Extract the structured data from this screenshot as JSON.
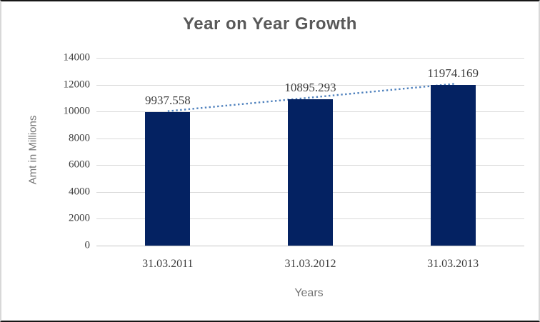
{
  "chart_data": {
    "type": "bar",
    "title": "Year on Year Growth",
    "xlabel": "Years",
    "ylabel": "Amt in Millions",
    "categories": [
      "31.03.2011",
      "31.03.2012",
      "31.03.2013"
    ],
    "values": [
      9937.558,
      10895.293,
      11974.169
    ],
    "data_labels": [
      "9937.558",
      "10895.293",
      "11974.169"
    ],
    "yticks": [
      0,
      2000,
      4000,
      6000,
      8000,
      10000,
      12000,
      14000
    ],
    "ylim": [
      0,
      14000
    ],
    "grid": true,
    "legend": "none",
    "trendline": {
      "type": "linear",
      "style": "dotted"
    }
  },
  "colors": {
    "bar": "#042262",
    "trendline": "#4f81bd",
    "gridline": "#d9d9d9",
    "baseline": "#c6c6c6",
    "title_text": "#595959",
    "tick_text": "#3f3f3f",
    "data_label_text": "#3f3f3f",
    "axis_title_text": "#757575",
    "background": "#ffffff"
  }
}
